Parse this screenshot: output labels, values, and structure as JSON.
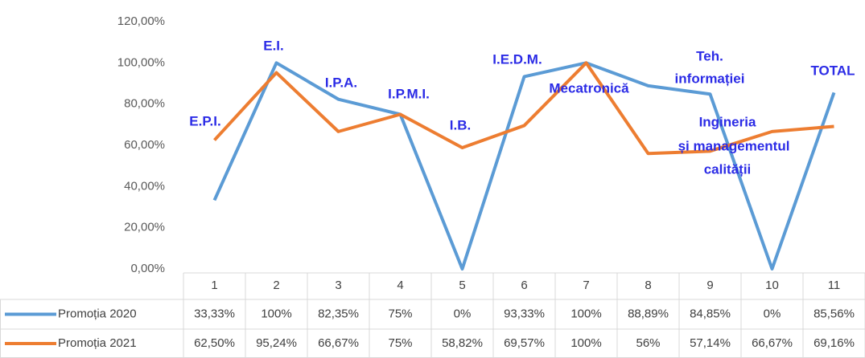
{
  "chart_data": {
    "type": "line",
    "categories": [
      "1",
      "2",
      "3",
      "4",
      "5",
      "6",
      "7",
      "8",
      "9",
      "10",
      "11"
    ],
    "series": [
      {
        "name": "Promoția 2020",
        "color": "#5b9bd5",
        "values": [
          33.33,
          100,
          82.35,
          75,
          0,
          93.33,
          100,
          88.89,
          84.85,
          0,
          85.56
        ],
        "value_labels": [
          "33,33%",
          "100%",
          "82,35%",
          "75%",
          "0%",
          "93,33%",
          "100%",
          "88,89%",
          "84,85%",
          "0%",
          "85,56%"
        ]
      },
      {
        "name": "Promoția 2021",
        "color": "#ed7d31",
        "values": [
          62.5,
          95.24,
          66.67,
          75,
          58.82,
          69.57,
          100,
          56,
          57.14,
          66.67,
          69.16
        ],
        "value_labels": [
          "62,50%",
          "95,24%",
          "66,67%",
          "75%",
          "58,82%",
          "69,57%",
          "100%",
          "56%",
          "57,14%",
          "66,67%",
          "69,16%"
        ]
      }
    ],
    "ylim": [
      0,
      120
    ],
    "yticks": [
      {
        "value": 0,
        "label": "0,00%"
      },
      {
        "value": 20,
        "label": "20,00%"
      },
      {
        "value": 40,
        "label": "40,00%"
      },
      {
        "value": 60,
        "label": "60,00%"
      },
      {
        "value": 80,
        "label": "80,00%"
      },
      {
        "value": 100,
        "label": "100,00%"
      },
      {
        "value": 120,
        "label": "120,00%"
      }
    ],
    "annotations": [
      [
        "E.P.I."
      ],
      [
        "E.I."
      ],
      [
        "I.P.A."
      ],
      [
        "I.P.M.I."
      ],
      [
        "I.B."
      ],
      [
        "I.E.D.M."
      ],
      [
        "Mecatronică"
      ],
      [
        "Teh.",
        "informației"
      ],
      [
        "Ingineria",
        "și managementul",
        "calității"
      ],
      [
        "TOTAL"
      ]
    ],
    "grid": false,
    "data_table": true
  }
}
